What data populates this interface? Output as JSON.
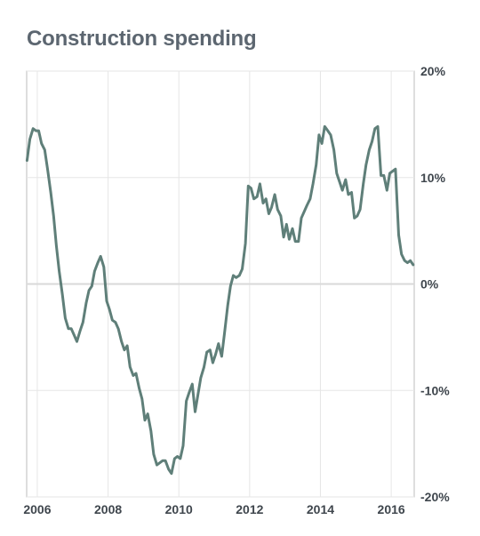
{
  "colors": {
    "line": "#5f7f79",
    "grid": "#e6e6e6",
    "zero_line": "#d9d9d9",
    "frame": "#bdbdbd",
    "title": "#5c6670",
    "tick_text": "#3f464d"
  },
  "chart_data": {
    "type": "line",
    "title": "Construction spending",
    "xlabel": "",
    "ylabel": "",
    "xlim": [
      2005.7,
      2016.65
    ],
    "ylim": [
      -20,
      20
    ],
    "x_ticks": [
      2006,
      2008,
      2010,
      2012,
      2014,
      2016
    ],
    "x_tick_labels": [
      "2006",
      "2008",
      "2010",
      "2012",
      "2014",
      "2016"
    ],
    "y_ticks": [
      20,
      10,
      0,
      -10,
      -20
    ],
    "y_tick_labels": [
      "20%",
      "10%",
      "0%",
      "-10%",
      "-20%"
    ],
    "y_axis_position": "right",
    "grid": true,
    "legend": "none",
    "series": [
      {
        "x": [
          2005.71,
          2005.79,
          2005.88,
          2005.96,
          2006.04,
          2006.12,
          2006.21,
          2006.29,
          2006.38,
          2006.46,
          2006.54,
          2006.62,
          2006.71,
          2006.79,
          2006.88,
          2006.96,
          2007.04,
          2007.12,
          2007.21,
          2007.29,
          2007.38,
          2007.46,
          2007.54,
          2007.62,
          2007.71,
          2007.79,
          2007.88,
          2007.96,
          2008.04,
          2008.12,
          2008.21,
          2008.29,
          2008.38,
          2008.46,
          2008.54,
          2008.62,
          2008.71,
          2008.79,
          2008.88,
          2008.96,
          2009.04,
          2009.12,
          2009.21,
          2009.29,
          2009.38,
          2009.46,
          2009.54,
          2009.62,
          2009.71,
          2009.79,
          2009.88,
          2009.96,
          2010.04,
          2010.12,
          2010.21,
          2010.29,
          2010.38,
          2010.46,
          2010.54,
          2010.62,
          2010.71,
          2010.79,
          2010.88,
          2010.96,
          2011.04,
          2011.12,
          2011.21,
          2011.29,
          2011.38,
          2011.46,
          2011.54,
          2011.62,
          2011.71,
          2011.79,
          2011.88,
          2011.96,
          2012.04,
          2012.12,
          2012.21,
          2012.29,
          2012.38,
          2012.46,
          2012.54,
          2012.62,
          2012.71,
          2012.79,
          2012.88,
          2012.96,
          2013.04,
          2013.12,
          2013.21,
          2013.29,
          2013.38,
          2013.46,
          2013.54,
          2013.62,
          2013.71,
          2013.79,
          2013.88,
          2013.96,
          2014.04,
          2014.12,
          2014.21,
          2014.29,
          2014.38,
          2014.46,
          2014.54,
          2014.62,
          2014.71,
          2014.79,
          2014.88,
          2014.96,
          2015.04,
          2015.12,
          2015.21,
          2015.29,
          2015.38,
          2015.46,
          2015.54,
          2015.62,
          2015.71,
          2015.79,
          2015.88,
          2015.96,
          2016.04,
          2016.12,
          2016.21,
          2016.29,
          2016.38,
          2016.46,
          2016.54,
          2016.62
        ],
        "y": [
          11.6,
          13.6,
          14.6,
          14.4,
          14.4,
          13.2,
          12.6,
          10.8,
          8.6,
          6.4,
          3.6,
          1.2,
          -1.0,
          -3.2,
          -4.2,
          -4.2,
          -4.8,
          -5.4,
          -4.4,
          -3.6,
          -1.8,
          -0.6,
          -0.2,
          1.2,
          2.0,
          2.6,
          1.6,
          -1.6,
          -2.4,
          -3.4,
          -3.6,
          -4.2,
          -5.4,
          -6.2,
          -5.8,
          -7.8,
          -8.6,
          -8.4,
          -9.8,
          -10.8,
          -12.8,
          -12.2,
          -13.8,
          -16.0,
          -17.0,
          -16.8,
          -16.6,
          -16.6,
          -17.4,
          -17.8,
          -16.4,
          -16.2,
          -16.4,
          -15.2,
          -11.0,
          -10.2,
          -9.4,
          -12.0,
          -10.4,
          -8.8,
          -7.8,
          -6.4,
          -6.2,
          -7.4,
          -6.6,
          -5.6,
          -6.8,
          -4.6,
          -2.0,
          -0.2,
          0.8,
          0.6,
          0.8,
          1.4,
          3.8,
          9.2,
          9.0,
          8.0,
          8.2,
          9.4,
          7.6,
          8.0,
          6.6,
          7.2,
          8.4,
          7.0,
          6.4,
          4.4,
          5.6,
          4.2,
          5.2,
          4.0,
          4.0,
          6.2,
          6.8,
          7.4,
          8.0,
          9.4,
          11.2,
          14.0,
          13.2,
          14.8,
          14.4,
          14.0,
          12.6,
          10.4,
          9.6,
          8.8,
          9.8,
          8.4,
          8.6,
          6.2,
          6.4,
          7.0,
          9.4,
          11.2,
          12.6,
          13.4,
          14.6,
          14.8,
          10.2,
          10.2,
          8.8,
          10.4,
          10.6,
          10.8,
          4.6,
          2.8,
          2.2,
          2.0,
          2.2,
          1.8
        ]
      }
    ]
  }
}
